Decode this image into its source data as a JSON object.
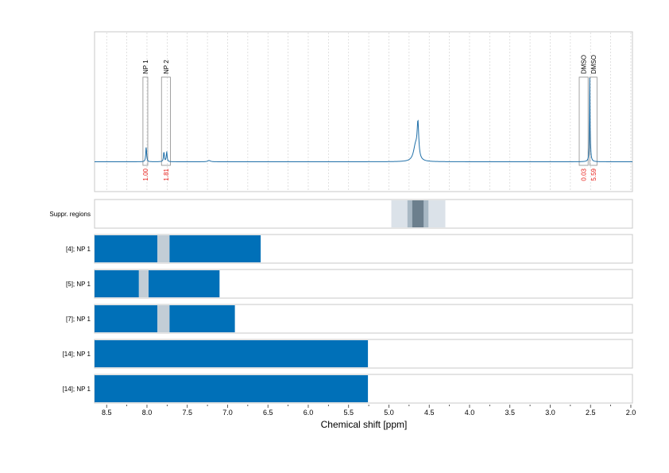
{
  "chart_data": {
    "type": "line",
    "xlabel": "Chemical shift [ppm]",
    "xlim": [
      8.65,
      1.98
    ],
    "x_reversed": true,
    "x_ticks": [
      8.5,
      8.0,
      7.5,
      7.0,
      6.5,
      6.0,
      5.5,
      5.0,
      4.5,
      4.0,
      3.5,
      3.0,
      2.5,
      2.0
    ],
    "x_tick_labels": [
      "8.5",
      "8.0",
      "7.5",
      "7.0",
      "6.5",
      "6.0",
      "5.5",
      "5.0",
      "4.5",
      "4.0",
      "3.5",
      "3.0",
      "2.5",
      "2.0"
    ],
    "grid": "vertical dotted",
    "spectrum": {
      "baseline": 0.0,
      "peaks": [
        {
          "ppm": 8.01,
          "height": 0.12,
          "width": 0.006
        },
        {
          "ppm": 7.79,
          "height": 0.08,
          "width": 0.006
        },
        {
          "ppm": 7.755,
          "height": 0.08,
          "width": 0.006
        },
        {
          "ppm": 7.23,
          "height": 0.01,
          "width": 0.02
        },
        {
          "ppm": 4.64,
          "height": 0.27,
          "width": 0.012
        },
        {
          "ppm": 4.67,
          "height": 0.12,
          "width": 0.03
        },
        {
          "ppm": 2.51,
          "height": 0.62,
          "width": 0.003
        },
        {
          "ppm": 2.505,
          "height": 0.15,
          "width": 0.008
        }
      ]
    },
    "annotations": [
      {
        "label": "NP 1",
        "from": 8.05,
        "to": 7.99,
        "integral": "1.00"
      },
      {
        "label": "NP 2",
        "from": 7.82,
        "to": 7.71,
        "integral": "1.81"
      },
      {
        "label": "DMSO",
        "from": 2.64,
        "to": 2.53,
        "integral": "0.03"
      },
      {
        "label": "DMSO",
        "from": 2.51,
        "to": 2.42,
        "integral": "5.59"
      }
    ],
    "suppressed_regions": {
      "label": "Suppr. regions",
      "bands": [
        {
          "from": 4.97,
          "to": 4.3,
          "shade": "light"
        },
        {
          "from": 4.77,
          "to": 4.51,
          "shade": "medium"
        },
        {
          "from": 4.71,
          "to": 4.57,
          "shade": "dark"
        }
      ]
    },
    "rows": [
      {
        "label": "[4]; NP 1",
        "segments": [
          {
            "from": 8.65,
            "to": 7.87,
            "type": "range"
          },
          {
            "from": 7.87,
            "to": 7.72,
            "type": "gap"
          },
          {
            "from": 7.72,
            "to": 6.59,
            "type": "range"
          }
        ]
      },
      {
        "label": "[5]; NP 1",
        "segments": [
          {
            "from": 8.65,
            "to": 8.1,
            "type": "range"
          },
          {
            "from": 8.1,
            "to": 7.98,
            "type": "gap"
          },
          {
            "from": 7.98,
            "to": 7.1,
            "type": "range"
          }
        ]
      },
      {
        "label": "[7]; NP 1",
        "segments": [
          {
            "from": 8.65,
            "to": 7.87,
            "type": "range"
          },
          {
            "from": 7.87,
            "to": 7.72,
            "type": "gap"
          },
          {
            "from": 7.72,
            "to": 6.91,
            "type": "range"
          }
        ]
      },
      {
        "label": "[14]; NP 1",
        "segments": [
          {
            "from": 8.65,
            "to": 5.26,
            "type": "range"
          }
        ]
      },
      {
        "label": "[14]; NP 1",
        "segments": [
          {
            "from": 8.65,
            "to": 5.26,
            "type": "range"
          }
        ]
      }
    ]
  },
  "colors": {
    "spectrum": "#1f6fa8",
    "range": "#0070b8",
    "gap": "#c2cdd6",
    "integral_text": "#e8201b",
    "suppr_light": "#dbe2e9",
    "suppr_medium": "#a8b8c4",
    "suppr_dark": "#6c7f8d"
  }
}
